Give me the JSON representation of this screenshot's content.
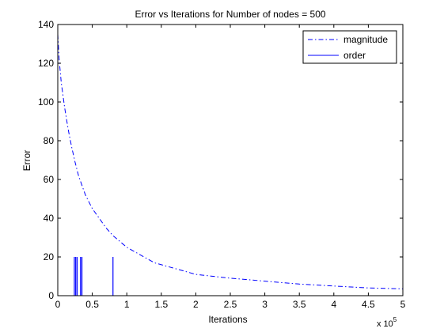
{
  "chart_data": {
    "type": "line",
    "title": "Error vs Iterations for Number of nodes = 500",
    "xlabel": "Iterations",
    "ylabel": "Error",
    "x_exponent_label": "x 10",
    "x_exponent": "5",
    "xlim": [
      0,
      5
    ],
    "ylim": [
      0,
      140
    ],
    "x_ticks": [
      0,
      0.5,
      1,
      1.5,
      2,
      2.5,
      3,
      3.5,
      4,
      4.5,
      5
    ],
    "x_tick_labels": [
      "0",
      "0.5",
      "1",
      "1.5",
      "2",
      "2.5",
      "3",
      "3.5",
      "4",
      "4.5",
      "5"
    ],
    "y_ticks": [
      0,
      20,
      40,
      60,
      80,
      100,
      120,
      140
    ],
    "y_tick_labels": [
      "0",
      "20",
      "40",
      "60",
      "80",
      "100",
      "120",
      "140"
    ],
    "grid": false,
    "legend_position": "top-right",
    "series": [
      {
        "name": "magnitude",
        "style": "dash-dot",
        "color": "#0000ff",
        "x": [
          0,
          0.02,
          0.05,
          0.1,
          0.15,
          0.2,
          0.25,
          0.3,
          0.35,
          0.4,
          0.5,
          0.6,
          0.7,
          0.8,
          0.9,
          1.0,
          1.2,
          1.4,
          1.6,
          1.8,
          2.0,
          2.5,
          3.0,
          3.5,
          4.0,
          4.5,
          5.0
        ],
        "y": [
          135,
          122,
          110,
          97,
          86,
          77,
          69,
          62,
          57,
          52,
          45,
          40,
          35,
          31,
          28,
          25,
          21,
          17,
          15,
          13,
          11,
          9,
          7.5,
          6,
          5,
          4,
          3.5
        ]
      },
      {
        "name": "order",
        "style": "solid",
        "color": "#0000ff",
        "type": "stem",
        "x": [
          0.24,
          0.26,
          0.28,
          0.33,
          0.35,
          0.8
        ],
        "y": [
          20,
          20,
          20,
          20,
          20,
          20
        ]
      }
    ]
  }
}
